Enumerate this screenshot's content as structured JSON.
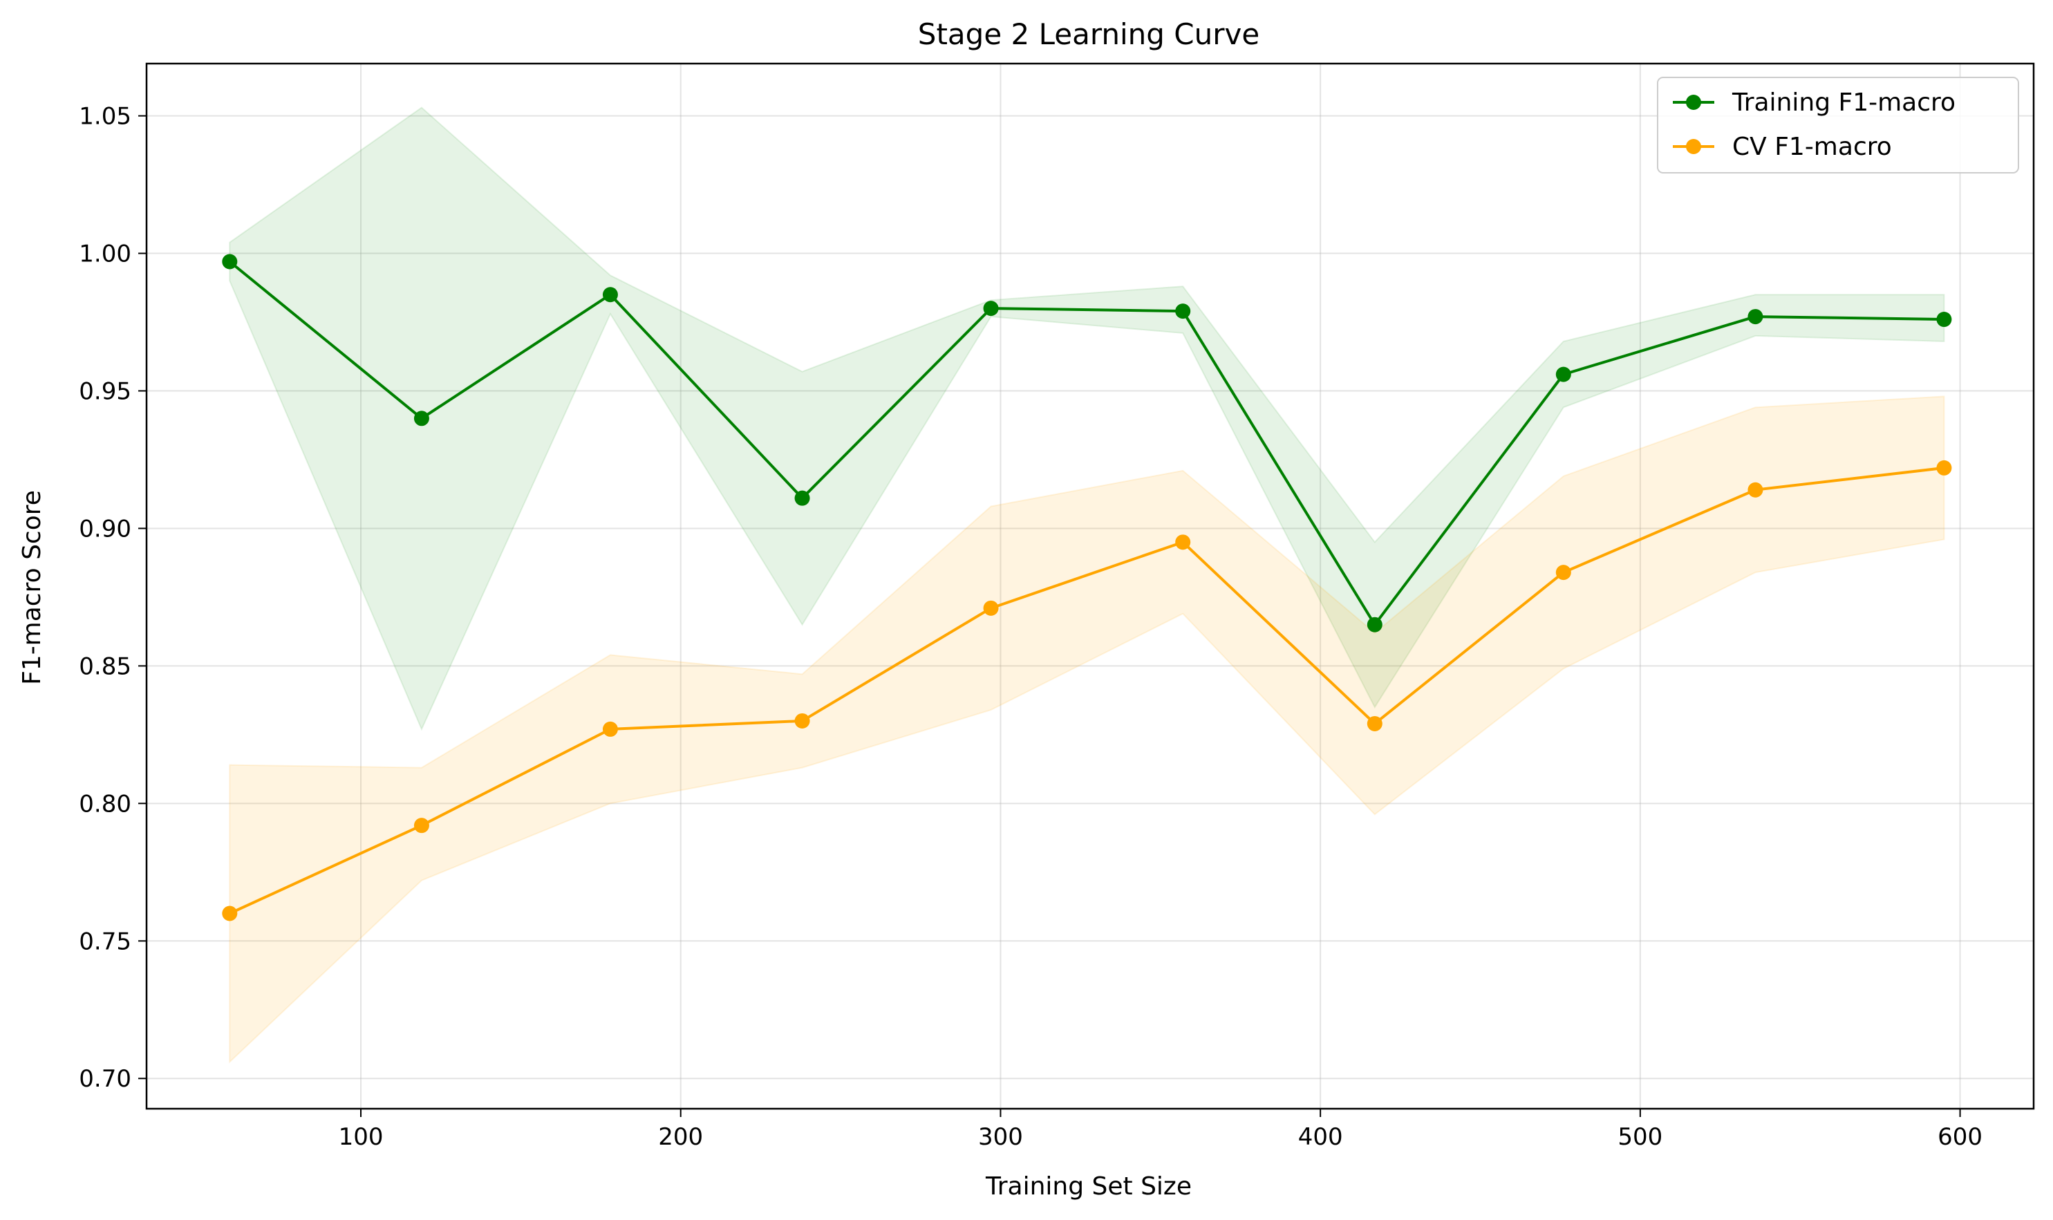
{
  "chart_data": {
    "type": "line",
    "title": "Stage 2 Learning Curve",
    "xlabel": "Training Set Size",
    "ylabel": "F1-macro Score",
    "xlim": [
      33,
      623
    ],
    "ylim": [
      0.689,
      1.069
    ],
    "x_ticks": [
      100,
      200,
      300,
      400,
      500,
      600
    ],
    "y_ticks": [
      0.7,
      0.75,
      0.8,
      0.85,
      0.9,
      0.95,
      1.0,
      1.05
    ],
    "x_tick_labels": [
      "100",
      "200",
      "300",
      "400",
      "500",
      "600"
    ],
    "y_tick_labels": [
      "0.70",
      "0.75",
      "0.80",
      "0.85",
      "0.90",
      "0.95",
      "1.00",
      "1.05"
    ],
    "grid": true,
    "legend_position": "top-right",
    "x": [
      59,
      119,
      178,
      238,
      297,
      357,
      417,
      476,
      536,
      595
    ],
    "series": [
      {
        "name": "Training F1-macro",
        "color": "#008000",
        "band_color": "#2ca02c",
        "values": [
          0.997,
          0.94,
          0.985,
          0.911,
          0.98,
          0.979,
          0.865,
          0.956,
          0.977,
          0.976
        ],
        "upper": [
          1.004,
          1.053,
          0.992,
          0.957,
          0.983,
          0.988,
          0.895,
          0.968,
          0.985,
          0.985
        ],
        "lower": [
          0.99,
          0.827,
          0.978,
          0.865,
          0.977,
          0.971,
          0.835,
          0.944,
          0.97,
          0.968
        ]
      },
      {
        "name": "CV F1-macro",
        "color": "#ffa500",
        "band_color": "#ffa500",
        "values": [
          0.76,
          0.792,
          0.827,
          0.83,
          0.871,
          0.895,
          0.829,
          0.884,
          0.914,
          0.922
        ],
        "upper": [
          0.814,
          0.813,
          0.854,
          0.847,
          0.908,
          0.921,
          0.862,
          0.919,
          0.944,
          0.948
        ],
        "lower": [
          0.706,
          0.772,
          0.8,
          0.813,
          0.834,
          0.869,
          0.796,
          0.849,
          0.884,
          0.896
        ]
      }
    ]
  }
}
